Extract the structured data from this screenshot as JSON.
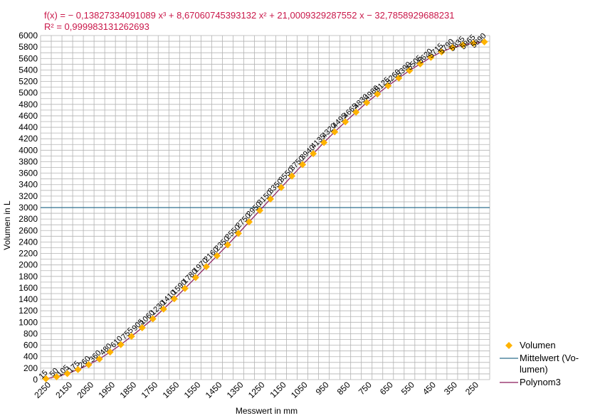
{
  "equation": {
    "line1": "f(x) = − 0,13827334091089 x³ + 8,67060745393132 x² + 21,0009329287552 x − 32,7858929688231",
    "line2": "R² = 0,999983131262693"
  },
  "chart_data": {
    "type": "scatter",
    "xlabel": "Messwert in mm",
    "ylabel": "Volumen in L",
    "x_tick_labels": [
      "2250",
      "2150",
      "2050",
      "1950",
      "1850",
      "1750",
      "1650",
      "1550",
      "1450",
      "1350",
      "1250",
      "1150",
      "1050",
      "950",
      "850",
      "750",
      "650",
      "550",
      "450",
      "350",
      "250"
    ],
    "y_ticks": [
      0,
      200,
      400,
      600,
      800,
      1000,
      1200,
      1400,
      1600,
      1800,
      2000,
      2200,
      2400,
      2600,
      2800,
      3000,
      3200,
      3400,
      3600,
      3800,
      4000,
      4200,
      4400,
      4600,
      4800,
      5000,
      5200,
      5400,
      5600,
      5800,
      6000
    ],
    "ylim": [
      0,
      6000
    ],
    "grid": true,
    "series": [
      {
        "name": "Volumen",
        "style": "markers",
        "color": "#ffb300",
        "values": [
          15,
          50,
          105,
          175,
          260,
          360,
          480,
          610,
          755,
          905,
          1060,
          1230,
          1410,
          1590,
          1780,
          1970,
          2160,
          2350,
          2550,
          2750,
          2950,
          3150,
          3350,
          3550,
          3750,
          3940,
          4135,
          4320,
          4495,
          4665,
          4830,
          4980,
          5125,
          5260,
          5390,
          5505,
          5620,
          5715,
          5790,
          5835,
          5865,
          5890
        ],
        "labels": [
          "15",
          "50",
          "105",
          "175",
          "260",
          "360",
          "480",
          "610",
          "755",
          "905",
          "1060",
          "1230",
          "1410",
          "1590",
          "1780",
          "1970",
          "2160",
          "2350",
          "2550",
          "2750",
          "2950",
          "3150",
          "3350",
          "3550",
          "3750",
          "3940",
          "4135",
          "4320",
          "4495",
          "4665",
          "4830",
          "4980",
          "5125",
          "5260",
          "5390",
          "5505",
          "5620",
          "5715",
          "5790",
          "5835",
          "5865",
          "5890"
        ]
      },
      {
        "name": "Mittelwert (Volumen)",
        "style": "line",
        "color": "#2e6f8e",
        "value": 3000
      },
      {
        "name": "Polynom3",
        "style": "line",
        "color": "#8b1a5a"
      }
    ]
  },
  "legend": {
    "items": [
      {
        "label": "Volumen"
      },
      {
        "label": "Mittelwert (Vo-\nlumen)"
      },
      {
        "label": "Polynom3"
      }
    ]
  }
}
